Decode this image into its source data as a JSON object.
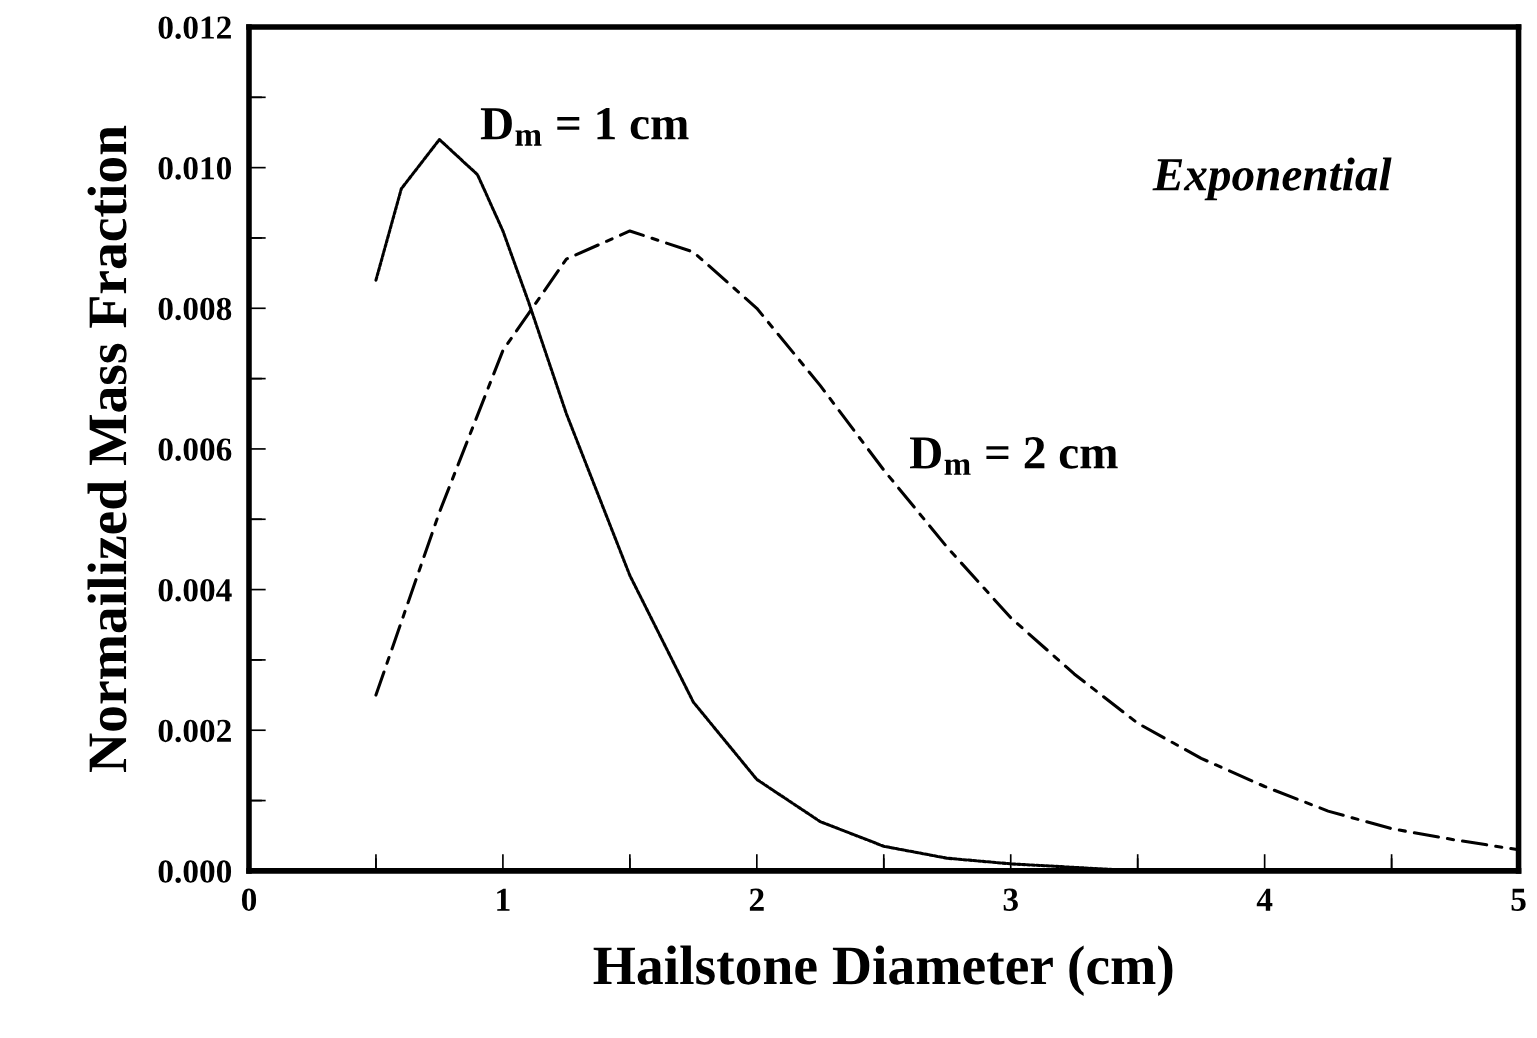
{
  "chart_data": {
    "type": "line",
    "xlabel": "Hailstone Diameter (cm)",
    "ylabel": "Normailized Mass Fraction",
    "xlim": [
      0,
      5
    ],
    "ylim": [
      0,
      0.012
    ],
    "xticks": [
      0,
      {
        "value": 0.5,
        "label": null
      },
      1,
      {
        "value": 1.5,
        "label": null
      },
      2,
      {
        "value": 2.5,
        "label": null
      },
      3,
      {
        "value": 3.5,
        "label": null
      },
      4,
      {
        "value": 4.5,
        "label": null
      },
      5
    ],
    "yticks": [
      {
        "value": 0,
        "label": "0.000"
      },
      {
        "value": 0.001,
        "label": null
      },
      {
        "value": 0.002,
        "label": "0.002"
      },
      {
        "value": 0.003,
        "label": null
      },
      {
        "value": 0.004,
        "label": "0.004"
      },
      {
        "value": 0.005,
        "label": null
      },
      {
        "value": 0.006,
        "label": "0.006"
      },
      {
        "value": 0.007,
        "label": null
      },
      {
        "value": 0.008,
        "label": "0.008"
      },
      {
        "value": 0.009,
        "label": null
      },
      {
        "value": 0.01,
        "label": "0.010"
      },
      {
        "value": 0.011,
        "label": null
      },
      {
        "value": 0.012,
        "label": "0.012"
      }
    ],
    "grid": false,
    "marker": "none",
    "series": [
      {
        "color": "#000000",
        "line_style": "dotted",
        "x": [
          0.5,
          0.6,
          0.75,
          0.9,
          1.0,
          1.1,
          1.25,
          1.5,
          1.75,
          2.0,
          2.25,
          2.5,
          2.75,
          3.0,
          3.5
        ],
        "values": [
          0.0084,
          0.0097,
          0.0104,
          0.0099,
          0.0091,
          0.0081,
          0.0065,
          0.0042,
          0.0024,
          0.0013,
          0.0007,
          0.00035,
          0.00018,
          0.0001,
          0.0
        ]
      },
      {
        "color": "#000000",
        "line_style": "dashed",
        "x": [
          0.5,
          0.75,
          1.0,
          1.25,
          1.5,
          1.75,
          2.0,
          2.25,
          2.5,
          2.75,
          3.0,
          3.25,
          3.5,
          3.75,
          4.0,
          4.25,
          4.5,
          4.75,
          5.0
        ],
        "values": [
          0.0025,
          0.0051,
          0.0074,
          0.0087,
          0.0091,
          0.0088,
          0.008,
          0.0069,
          0.0057,
          0.0046,
          0.0036,
          0.0028,
          0.0021,
          0.0016,
          0.0012,
          0.00085,
          0.0006,
          0.00044,
          0.0003
        ]
      }
    ],
    "annotations": [
      "D$_{m}$ = 1 cm",
      "D$_{m}$ = 2 cm",
      "Exponential"
    ]
  }
}
